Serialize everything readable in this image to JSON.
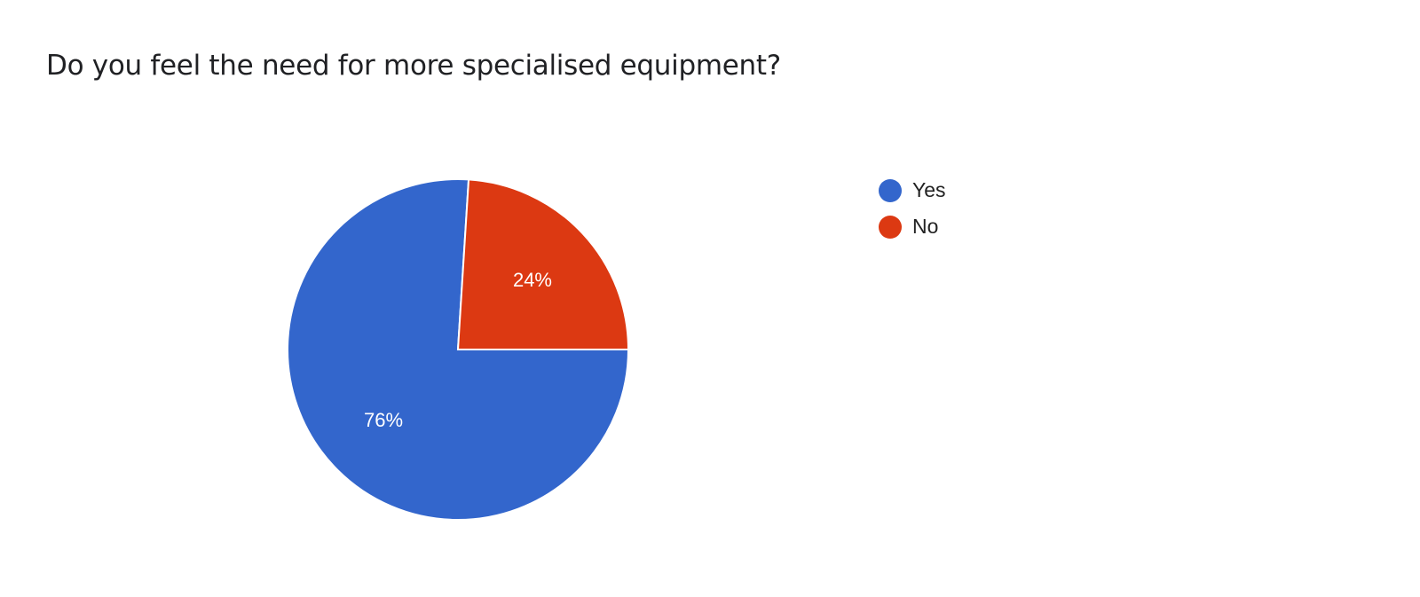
{
  "chart_data": {
    "type": "pie",
    "title": "Do you feel the need for more specialised equipment?",
    "categories": [
      "Yes",
      "No"
    ],
    "values": [
      76,
      24
    ],
    "data_labels": [
      "76%",
      "24%"
    ],
    "colors": [
      "#3366cc",
      "#dc3912"
    ],
    "legend_position": "right"
  }
}
